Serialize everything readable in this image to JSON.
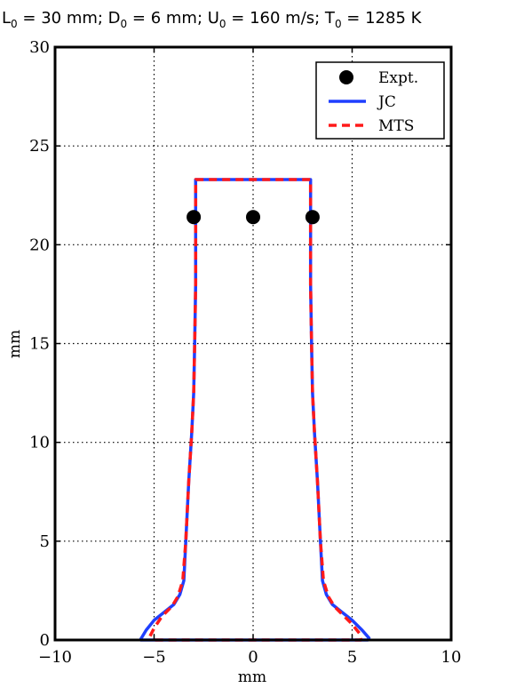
{
  "chart_data": {
    "type": "line",
    "title": {
      "parts": [
        {
          "t": "L"
        },
        {
          "t": "0",
          "sub": true
        },
        {
          "t": " = 30 mm; D"
        },
        {
          "t": "0",
          "sub": true
        },
        {
          "t": " = 6 mm; U"
        },
        {
          "t": "0",
          "sub": true
        },
        {
          "t": " = 160 m/s; T"
        },
        {
          "t": "0",
          "sub": true
        },
        {
          "t": " = 1285 K"
        }
      ]
    },
    "xlabel": "mm",
    "ylabel": "mm",
    "xlim": [
      -10,
      10
    ],
    "ylim": [
      0,
      30
    ],
    "xticks": [
      -10,
      -5,
      0,
      5,
      10
    ],
    "yticks": [
      0,
      5,
      10,
      15,
      20,
      25,
      30
    ],
    "xtick_labels": [
      "−10",
      "−5",
      "0",
      "5",
      "10"
    ],
    "ytick_labels": [
      "0",
      "5",
      "10",
      "15",
      "20",
      "25",
      "30"
    ],
    "grid": true,
    "legend_position": "top-right",
    "series": [
      {
        "name": "Expt.",
        "kind": "markers",
        "color": "#000000",
        "x": [
          -3.0,
          0.0,
          3.0
        ],
        "y": [
          21.4,
          21.4,
          21.4
        ]
      },
      {
        "name": "JC",
        "kind": "line",
        "color": "#1f3fff",
        "x": [
          -5.7,
          -5.4,
          -5.0,
          -4.5,
          -4.0,
          -3.7,
          -3.5,
          -3.4,
          -3.25,
          -3.1,
          -3.0,
          -2.95,
          -2.9,
          -2.9,
          2.9,
          2.9,
          2.95,
          3.0,
          3.1,
          3.25,
          3.4,
          3.5,
          3.7,
          4.0,
          4.5,
          5.0,
          5.5,
          5.85,
          5.8,
          -5.7
        ],
        "y": [
          0.0,
          0.5,
          1.0,
          1.4,
          1.8,
          2.3,
          3.0,
          5.0,
          8.0,
          10.5,
          12.5,
          15.0,
          18.0,
          23.3,
          23.3,
          18.0,
          15.0,
          12.5,
          10.5,
          8.0,
          5.0,
          3.0,
          2.3,
          1.8,
          1.4,
          1.0,
          0.5,
          0.1,
          0.0,
          0.0
        ]
      },
      {
        "name": "MTS",
        "kind": "dashed",
        "color": "#ff1a1a",
        "x": [
          -5.2,
          -5.0,
          -4.6,
          -4.1,
          -3.8,
          -3.55,
          -3.4,
          -3.25,
          -3.1,
          -3.0,
          -2.95,
          -2.9,
          -2.9,
          2.9,
          2.9,
          2.95,
          3.0,
          3.1,
          3.25,
          3.4,
          3.55,
          3.8,
          4.1,
          4.6,
          5.0,
          5.4,
          5.45,
          -5.2
        ],
        "y": [
          0.2,
          0.6,
          1.2,
          1.7,
          2.2,
          3.0,
          5.0,
          8.0,
          10.5,
          12.5,
          15.0,
          18.0,
          23.3,
          23.3,
          18.0,
          15.0,
          12.5,
          10.5,
          8.0,
          5.0,
          3.0,
          2.2,
          1.7,
          1.2,
          0.8,
          0.3,
          0.0,
          0.0
        ]
      }
    ]
  }
}
